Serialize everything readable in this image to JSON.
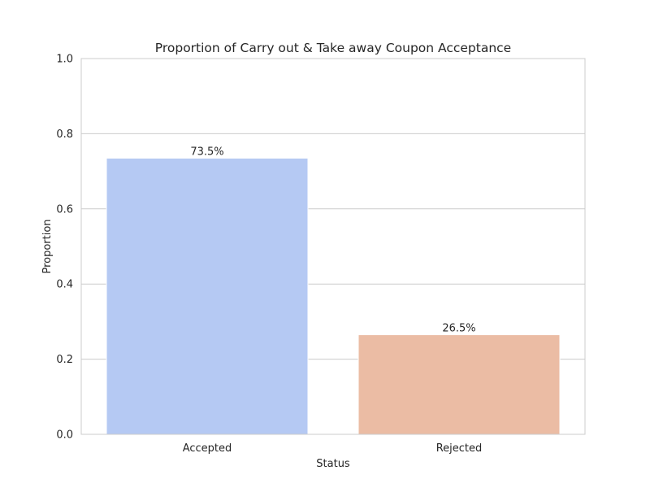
{
  "chart_data": {
    "type": "bar",
    "title": "Proportion of Carry out & Take away Coupon Acceptance",
    "xlabel": "Status",
    "ylabel": "Proportion",
    "categories": [
      "Accepted",
      "Rejected"
    ],
    "values": [
      0.735,
      0.265
    ],
    "data_labels": [
      "73.5%",
      "26.5%"
    ],
    "ylim": [
      0,
      1.0
    ],
    "yticks": [
      0.0,
      0.2,
      0.4,
      0.6,
      0.8,
      1.0
    ],
    "ytick_labels": [
      "0.0",
      "0.2",
      "0.4",
      "0.6",
      "0.8",
      "1.0"
    ],
    "grid": true,
    "colors": [
      "#b5c9f3",
      "#ebbca4"
    ],
    "grid_color": "#cccccc",
    "frame_color": "#cccccc"
  }
}
